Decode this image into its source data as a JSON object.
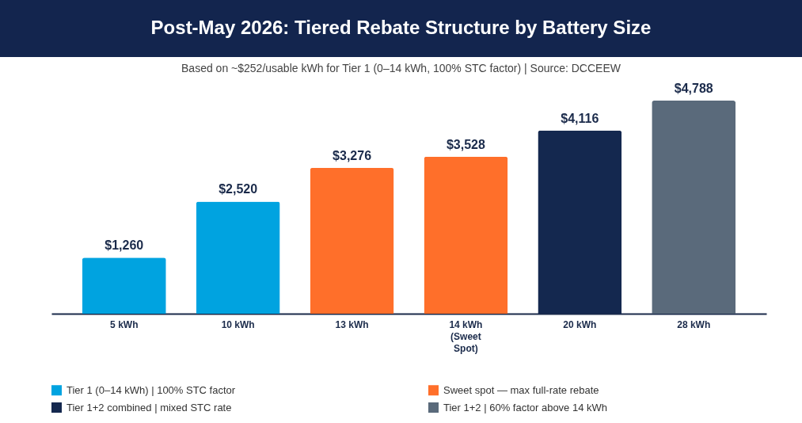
{
  "chart_data": {
    "type": "bar",
    "title": "Post-May 2026: Tiered Rebate Structure by Battery Size",
    "subtitle": "Based on ~$252/usable kWh for Tier 1 (0–14 kWh, 100% STC factor)  |  Source: DCCEEW",
    "categories": [
      "5 kWh",
      "10 kWh",
      "13 kWh",
      "14 kWh (Sweet Spot)",
      "20 kWh",
      "28 kWh"
    ],
    "series": [
      {
        "name": "Tier 1 (0–14 kWh)  |  100% STC factor",
        "color": "#00a3e0",
        "values": [
          1260,
          2520,
          null,
          null,
          null,
          null
        ],
        "value_labels": [
          "$1,260",
          "$2,520",
          null,
          null,
          null,
          null
        ]
      },
      {
        "name": "Sweet spot — max full-rate rebate",
        "color": "#ff6f2a",
        "values": [
          null,
          null,
          3276,
          3528,
          null,
          null
        ],
        "value_labels": [
          null,
          null,
          "$3,276",
          "$3,528",
          null,
          null
        ]
      },
      {
        "name": "Tier 1+2 combined  |  mixed STC rate",
        "color": "#14284f",
        "values": [
          null,
          null,
          null,
          null,
          4116,
          null
        ],
        "value_labels": [
          null,
          null,
          null,
          null,
          "$4,116",
          null
        ]
      },
      {
        "name": "Tier 1+2  |  60% factor above 14 kWh",
        "color": "#5a6a7b",
        "values": [
          null,
          null,
          null,
          null,
          null,
          4788
        ],
        "value_labels": [
          null,
          null,
          null,
          null,
          null,
          "$4,788"
        ]
      }
    ],
    "legend": "bottom",
    "tick_labels": "x"
  }
}
